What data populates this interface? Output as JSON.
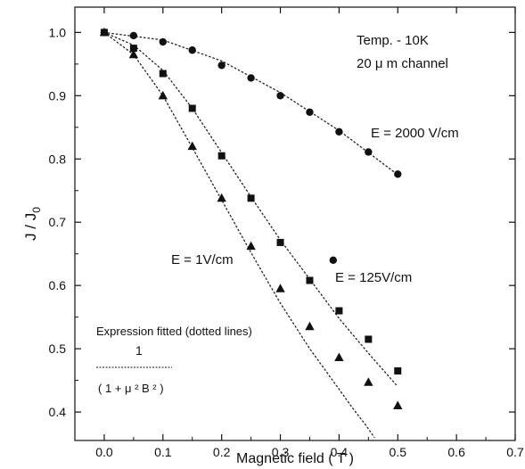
{
  "chart_data": {
    "type": "scatter",
    "xlabel": "Magnetic field ( T )",
    "ylabel_main": "J / J",
    "ylabel_sub": "0",
    "xlim": [
      -0.05,
      0.7
    ],
    "ylim": [
      0.355,
      1.04
    ],
    "x_ticks": [
      0.0,
      0.1,
      0.2,
      0.3,
      0.4,
      0.5,
      0.6,
      0.7
    ],
    "x_tick_labels": [
      "0.0",
      "0.1",
      "0.2",
      "0.3",
      "0.4",
      "0.5",
      "0.6",
      "0.7"
    ],
    "y_ticks": [
      0.4,
      0.5,
      0.6,
      0.7,
      0.8,
      0.9,
      1.0
    ],
    "y_tick_labels": [
      "0.4",
      "0.5",
      "0.6",
      "0.7",
      "0.8",
      "0.9",
      "1.0"
    ],
    "grid": false,
    "series": [
      {
        "name": "E = 2000 V/cm",
        "marker": "circle",
        "points": [
          [
            0.0,
            1.0
          ],
          [
            0.05,
            0.995
          ],
          [
            0.1,
            0.985
          ],
          [
            0.15,
            0.972
          ],
          [
            0.2,
            0.948
          ],
          [
            0.25,
            0.928
          ],
          [
            0.3,
            0.9
          ],
          [
            0.35,
            0.874
          ],
          [
            0.4,
            0.843
          ],
          [
            0.45,
            0.811
          ],
          [
            0.5,
            0.776
          ],
          [
            0.39,
            0.64
          ]
        ],
        "fit": [
          [
            0.0,
            1.0
          ],
          [
            0.1,
            0.988
          ],
          [
            0.2,
            0.955
          ],
          [
            0.3,
            0.905
          ],
          [
            0.4,
            0.845
          ],
          [
            0.5,
            0.775
          ]
        ]
      },
      {
        "name": "E = 125V/cm",
        "marker": "square",
        "points": [
          [
            0.0,
            1.0
          ],
          [
            0.05,
            0.975
          ],
          [
            0.1,
            0.935
          ],
          [
            0.15,
            0.88
          ],
          [
            0.2,
            0.805
          ],
          [
            0.25,
            0.738
          ],
          [
            0.3,
            0.668
          ],
          [
            0.35,
            0.608
          ],
          [
            0.4,
            0.56
          ],
          [
            0.45,
            0.515
          ],
          [
            0.5,
            0.465
          ]
        ],
        "fit": [
          [
            0.0,
            1.0
          ],
          [
            0.05,
            0.98
          ],
          [
            0.1,
            0.94
          ],
          [
            0.15,
            0.88
          ],
          [
            0.2,
            0.81
          ],
          [
            0.25,
            0.74
          ],
          [
            0.3,
            0.672
          ],
          [
            0.35,
            0.61
          ],
          [
            0.4,
            0.548
          ],
          [
            0.45,
            0.493
          ],
          [
            0.5,
            0.44
          ]
        ]
      },
      {
        "name": "E = 1V/cm",
        "marker": "triangle",
        "points": [
          [
            0.0,
            1.0
          ],
          [
            0.05,
            0.965
          ],
          [
            0.1,
            0.9
          ],
          [
            0.15,
            0.82
          ],
          [
            0.2,
            0.738
          ],
          [
            0.25,
            0.662
          ],
          [
            0.3,
            0.595
          ],
          [
            0.35,
            0.535
          ],
          [
            0.4,
            0.486
          ],
          [
            0.45,
            0.447
          ],
          [
            0.5,
            0.41
          ]
        ],
        "fit": [
          [
            0.0,
            1.0
          ],
          [
            0.05,
            0.965
          ],
          [
            0.1,
            0.9
          ],
          [
            0.15,
            0.818
          ],
          [
            0.2,
            0.735
          ],
          [
            0.25,
            0.652
          ],
          [
            0.3,
            0.572
          ],
          [
            0.35,
            0.5
          ],
          [
            0.4,
            0.436
          ],
          [
            0.42,
            0.41
          ],
          [
            0.445,
            0.38
          ],
          [
            0.46,
            0.36
          ]
        ]
      }
    ],
    "annotations": {
      "temp": "Temp. - 10K",
      "channel": "20  μ m channel",
      "e2000": "E = 2000 V/cm",
      "e125": "E = 125V/cm",
      "e1": "E = 1V/cm",
      "fit_title": "Expression fitted (dotted lines)",
      "fit_numerator": "1",
      "fit_denominator": "( 1 + μ ² B ² )"
    }
  }
}
